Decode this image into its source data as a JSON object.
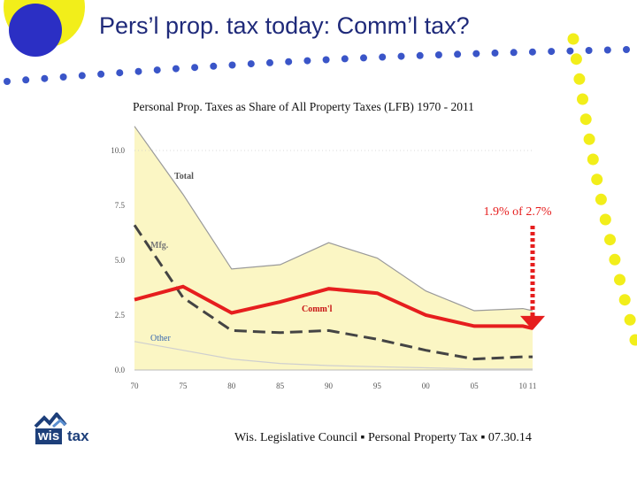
{
  "slide": {
    "title": "Pers’l prop. tax today:  Comm’l tax?",
    "footer": "Wis. Legislative Council ▪ Personal Property Tax ▪ 07.30.14",
    "logo": {
      "part1": "wis",
      "part2": "tax"
    },
    "colors": {
      "title": "#1f2a7a",
      "blue_dot": "#2b2fc4",
      "yellow_dot": "#f2ee1a",
      "dotted_line": "#3a55c8"
    }
  },
  "chart_data": {
    "type": "line",
    "title": "Personal Prop. Taxes as Share of All Property Taxes (LFB) 1970 - 2011",
    "x": [
      "70",
      "75",
      "80",
      "85",
      "90",
      "95",
      "00",
      "05",
      "10",
      "11"
    ],
    "x_years": [
      1970,
      1975,
      1980,
      1985,
      1990,
      1995,
      2000,
      2005,
      2010,
      2011
    ],
    "ylim": [
      0,
      10
    ],
    "yticks": [
      "0.0",
      "2.5",
      "5.0",
      "7.5",
      "10.0"
    ],
    "series": [
      {
        "name": "Total",
        "style": "area",
        "color": "#fbf6c4",
        "values": [
          11.1,
          8.0,
          4.6,
          4.8,
          5.8,
          5.1,
          3.6,
          2.7,
          2.8,
          2.7
        ]
      },
      {
        "name": "Mfg.",
        "style": "dashed",
        "color": "#444444",
        "values": [
          6.6,
          3.3,
          1.8,
          1.7,
          1.8,
          1.4,
          0.9,
          0.5,
          0.6,
          0.6
        ]
      },
      {
        "name": "Comm'l",
        "style": "solid",
        "color": "#e61e1e",
        "values": [
          3.2,
          3.8,
          2.6,
          3.1,
          3.7,
          3.5,
          2.5,
          2.0,
          2.0,
          1.9
        ]
      },
      {
        "name": "Other",
        "style": "thin",
        "color": "#cfcfcf",
        "values": [
          1.3,
          0.9,
          0.5,
          0.3,
          0.2,
          0.15,
          0.1,
          0.05,
          0.05,
          0.05
        ]
      }
    ],
    "annotations": [
      {
        "text": "1.9% of 2.7%",
        "color": "#e61e1e"
      }
    ],
    "grid": false
  }
}
